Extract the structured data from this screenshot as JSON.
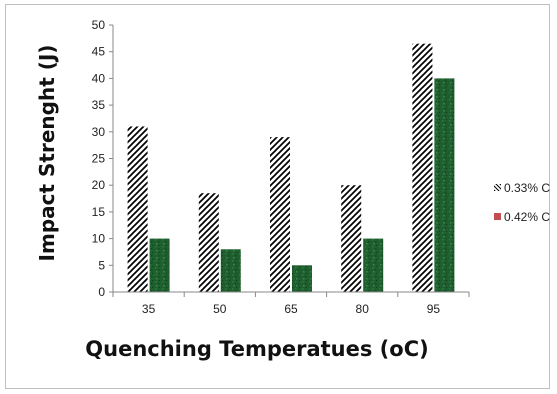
{
  "chart_data": {
    "type": "bar",
    "title": "",
    "xlabel": "Quenching Temperatues (oC)",
    "ylabel": "Impact Strenght (J)",
    "categories": [
      "35",
      "50",
      "65",
      "80",
      "95"
    ],
    "series": [
      {
        "name": "0.33% C",
        "values": [
          31,
          18.5,
          29,
          20,
          46.5
        ],
        "fill": "hatch",
        "color": "#000000"
      },
      {
        "name": "0.42% C",
        "values": [
          10,
          8,
          5,
          10,
          40
        ],
        "fill": "solid",
        "color": "#1f5e2e"
      }
    ],
    "ylim": [
      0,
      50
    ],
    "yticks": [
      0,
      5,
      10,
      15,
      20,
      25,
      30,
      35,
      40,
      45,
      50
    ],
    "grid": false,
    "legend_position": "right"
  }
}
